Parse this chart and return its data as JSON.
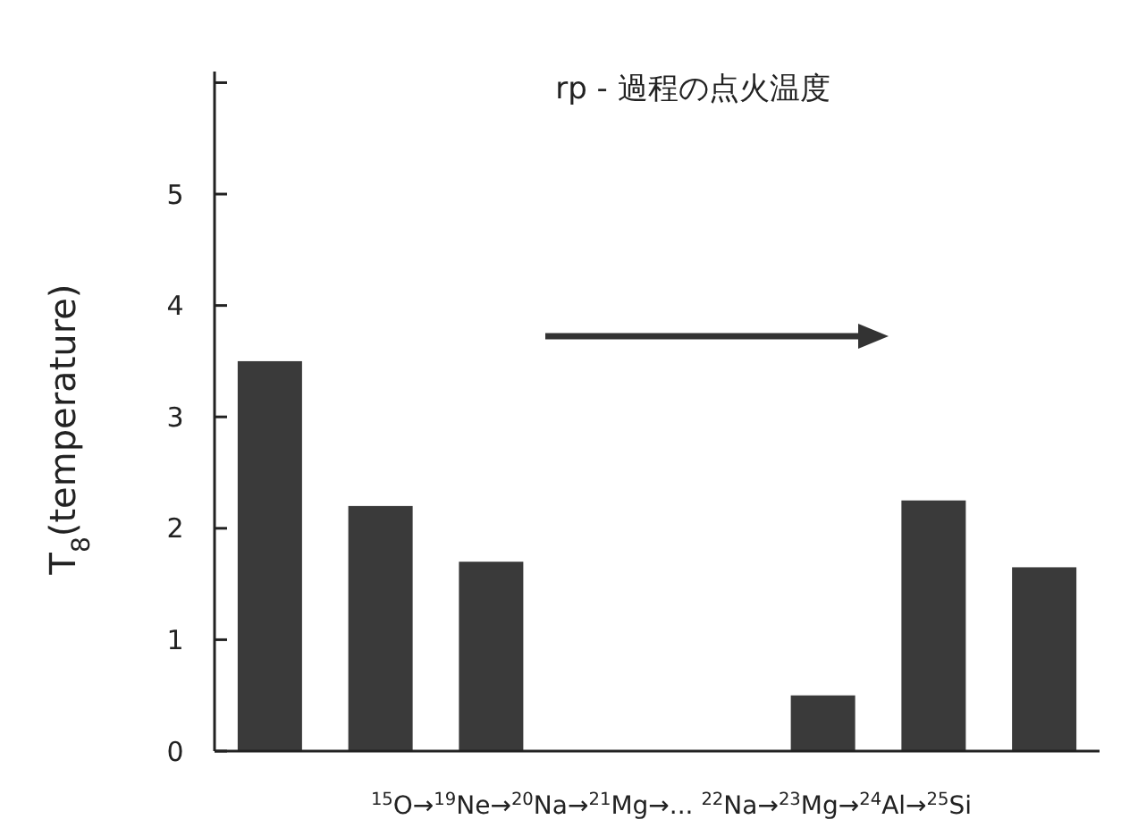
{
  "chart_data": {
    "type": "bar",
    "title": "rp - 過程の点火温度",
    "ylabel": "T$_{8}$(temperature)",
    "xlabel": "$^{15}$O→$^{19}$Ne→$^{20}$Na→$^{21}$Mg→... $^{22}$Na→$^{23}$Mg→$^{24}$Al→$^{25}$Si",
    "categories": [
      null,
      null,
      null,
      null,
      null,
      null,
      null,
      null
    ],
    "values": [
      3.5,
      2.2,
      1.7,
      null,
      null,
      0.5,
      2.25,
      1.65
    ],
    "color": "#3a3a3a",
    "ylim": [
      0,
      6.1
    ],
    "yticks": [
      0,
      1,
      2,
      3,
      4,
      5,
      {
        "value": 6,
        "label": null
      }
    ],
    "grid": false
  }
}
